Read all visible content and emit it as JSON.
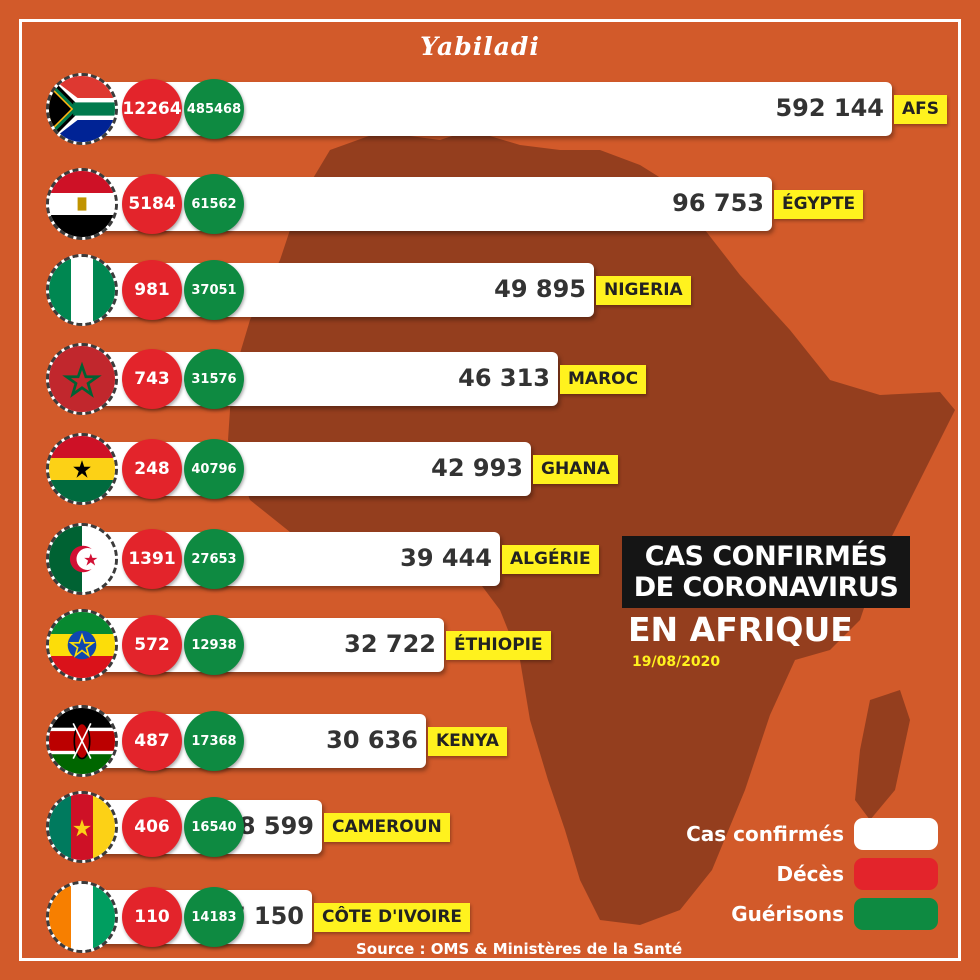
{
  "brand": "Yabiladi",
  "title_line1": "CAS CONFIRMÉS",
  "title_line2": "DE CORONAVIRUS",
  "subtitle": "EN AFRIQUE",
  "date": "19/08/2020",
  "source": "Source : OMS & Ministères de la Santé",
  "legend": {
    "confirmed": "Cas confirmés",
    "deaths": "Décès",
    "recoveries": "Guérisons"
  },
  "colors": {
    "background": "#d25a2a",
    "africa_silhouette": "#8a3a1c",
    "confirmed": "#ffffff",
    "deaths": "#e3242b",
    "recoveries": "#0e8a41",
    "label_highlight": "#fff21e"
  },
  "chart_data": {
    "type": "bar",
    "orientation": "horizontal",
    "categories": [
      "AFS",
      "ÉGYPTE",
      "NIGERIA",
      "MAROC",
      "GHANA",
      "ALGÉRIE",
      "ÉTHIOPIE",
      "KENYA",
      "CAMEROUN",
      "CÔTE D'IVOIRE"
    ],
    "series": [
      {
        "name": "Cas confirmés",
        "values": [
          592144,
          96753,
          49895,
          46313,
          42993,
          39444,
          32722,
          30636,
          18599,
          17150
        ]
      },
      {
        "name": "Décès",
        "values": [
          12264,
          5184,
          981,
          743,
          248,
          1391,
          572,
          487,
          406,
          110
        ]
      },
      {
        "name": "Guérisons",
        "values": [
          485468,
          61562,
          37051,
          31576,
          40796,
          27653,
          12938,
          17368,
          16540,
          14183
        ]
      }
    ],
    "value_labels": [
      "592 144",
      "96 753",
      "49 895",
      "46 313",
      "42 993",
      "39 444",
      "32 722",
      "30 636",
      "18 599",
      "17 150"
    ],
    "flags": [
      "south-africa-flag",
      "egypt-flag",
      "nigeria-flag",
      "morocco-flag",
      "ghana-flag",
      "algeria-flag",
      "ethiopia-flag",
      "kenya-flag",
      "cameroon-flag",
      "cote-divoire-flag"
    ],
    "title": "CAS CONFIRMÉS DE CORONAVIRUS EN AFRIQUE",
    "legend_position": "bottom-right"
  }
}
